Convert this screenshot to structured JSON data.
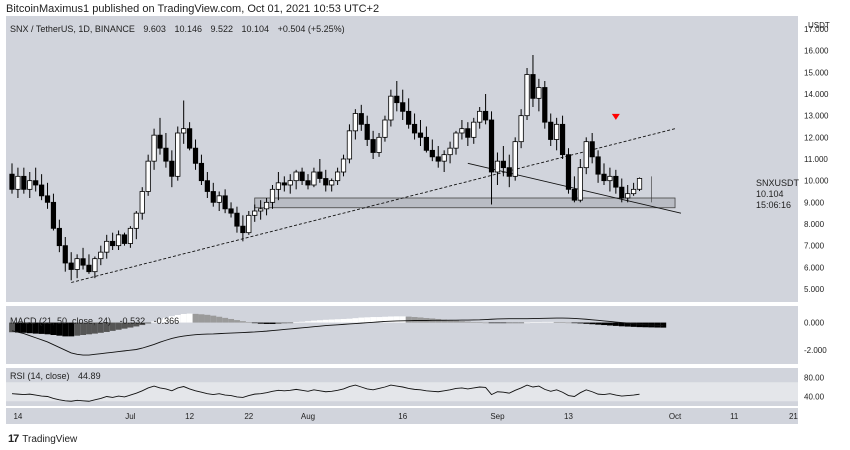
{
  "header": {
    "text": "BitcoinMaximus1 published on TradingView.com, Oct 01, 2021 10:53 UTC+2"
  },
  "footer": {
    "logo": "17",
    "text": "TradingView"
  },
  "legend": {
    "symbol": "SNX / TetherUS, 1D, BINANCE",
    "open": "9.603",
    "high": "10.146",
    "low": "9.522",
    "close": "10.104",
    "change": "+0.504 (+5.25%)"
  },
  "price_tag": {
    "symbol": "SNXUSDT",
    "price": "10.104",
    "countdown": "15:06:16"
  },
  "macd_legend": {
    "label": "MACD (21, 50, close, 24)",
    "v1": "-0.532",
    "v2": "-0.366"
  },
  "rsi_legend": {
    "label": "RSI (14, close)",
    "value": "44.89"
  },
  "colors": {
    "bg": "#d1d4dc",
    "up_fill": "#ffffff",
    "down_fill": "#000000",
    "marker": "#ff0000"
  },
  "chart_data": [
    {
      "type": "candlestick",
      "title": "SNX / TetherUS, 1D, BINANCE",
      "y_ticks": [
        "17.000",
        "16.000",
        "15.000",
        "14.000",
        "13.000",
        "12.000",
        "11.000",
        "10.000",
        "9.000",
        "8.000",
        "7.000",
        "6.000",
        "5.000"
      ],
      "y_top_label": "USDT",
      "x_ticks": [
        "14",
        "Jul",
        "12",
        "22",
        "Aug",
        "16",
        "Sep",
        "13",
        "Oct",
        "11",
        "21"
      ],
      "ylim": [
        4.4,
        17.6
      ],
      "candles": [
        [
          10.3,
          10.8,
          9.4,
          9.6
        ],
        [
          9.6,
          10.6,
          9.2,
          10.2
        ],
        [
          10.2,
          10.6,
          9.4,
          9.6
        ],
        [
          9.6,
          10.4,
          9.2,
          10.0
        ],
        [
          10.0,
          10.6,
          9.5,
          9.8
        ],
        [
          9.8,
          10.3,
          9.1,
          9.3
        ],
        [
          9.3,
          9.9,
          8.7,
          9.0
        ],
        [
          9.0,
          9.4,
          7.7,
          7.8
        ],
        [
          7.8,
          8.2,
          6.7,
          7.0
        ],
        [
          7.0,
          7.4,
          5.8,
          6.2
        ],
        [
          6.2,
          6.7,
          5.4,
          5.9
        ],
        [
          5.9,
          6.6,
          5.5,
          6.4
        ],
        [
          6.4,
          6.9,
          5.9,
          6.1
        ],
        [
          6.1,
          6.6,
          5.7,
          5.8
        ],
        [
          5.8,
          6.5,
          5.5,
          6.4
        ],
        [
          6.4,
          7.0,
          6.1,
          6.7
        ],
        [
          6.7,
          7.5,
          6.4,
          7.2
        ],
        [
          7.2,
          7.6,
          6.8,
          7.0
        ],
        [
          7.0,
          7.7,
          6.8,
          7.5
        ],
        [
          7.5,
          7.6,
          7.0,
          7.1
        ],
        [
          7.1,
          7.9,
          6.9,
          7.8
        ],
        [
          7.8,
          8.6,
          7.3,
          8.5
        ],
        [
          8.5,
          9.7,
          8.2,
          9.5
        ],
        [
          9.5,
          11.2,
          9.3,
          10.9
        ],
        [
          10.9,
          12.4,
          10.5,
          12.1
        ],
        [
          12.1,
          12.9,
          11.2,
          11.5
        ],
        [
          11.5,
          12.2,
          10.6,
          10.9
        ],
        [
          10.9,
          11.4,
          9.7,
          10.2
        ],
        [
          10.2,
          12.5,
          10.0,
          12.2
        ],
        [
          12.2,
          13.7,
          11.7,
          12.4
        ],
        [
          12.4,
          12.7,
          11.4,
          11.5
        ],
        [
          11.5,
          11.9,
          10.5,
          10.8
        ],
        [
          10.8,
          11.2,
          9.8,
          10.0
        ],
        [
          10.0,
          10.4,
          9.2,
          9.5
        ],
        [
          9.5,
          9.9,
          8.8,
          9.0
        ],
        [
          9.0,
          9.5,
          8.6,
          9.3
        ],
        [
          9.3,
          9.6,
          8.5,
          8.7
        ],
        [
          8.7,
          9.0,
          8.3,
          8.5
        ],
        [
          8.5,
          8.8,
          7.6,
          7.9
        ],
        [
          7.9,
          8.4,
          7.2,
          7.6
        ],
        [
          7.6,
          8.6,
          7.5,
          8.4
        ],
        [
          8.4,
          8.9,
          8.1,
          8.6
        ],
        [
          8.6,
          9.1,
          8.2,
          8.7
        ],
        [
          8.7,
          9.2,
          8.4,
          9.0
        ],
        [
          9.0,
          9.8,
          8.7,
          9.6
        ],
        [
          9.6,
          10.4,
          9.1,
          9.9
        ],
        [
          9.9,
          10.2,
          9.5,
          9.8
        ],
        [
          9.8,
          10.3,
          9.4,
          10.0
        ],
        [
          10.0,
          10.5,
          9.6,
          10.4
        ],
        [
          10.4,
          10.6,
          9.8,
          10.0
        ],
        [
          10.0,
          10.3,
          9.6,
          9.8
        ],
        [
          9.8,
          10.6,
          9.7,
          10.4
        ],
        [
          10.4,
          11.0,
          9.9,
          10.1
        ],
        [
          10.1,
          10.5,
          9.5,
          9.8
        ],
        [
          9.8,
          10.1,
          9.5,
          10.0
        ],
        [
          10.0,
          10.6,
          9.8,
          10.4
        ],
        [
          10.4,
          11.2,
          10.2,
          11.0
        ],
        [
          11.0,
          12.6,
          10.8,
          12.3
        ],
        [
          12.3,
          13.3,
          11.9,
          13.1
        ],
        [
          13.1,
          13.5,
          12.3,
          12.6
        ],
        [
          12.6,
          13.0,
          11.6,
          11.9
        ],
        [
          11.9,
          12.3,
          11.0,
          11.3
        ],
        [
          11.3,
          12.2,
          11.1,
          12.0
        ],
        [
          12.0,
          13.0,
          11.8,
          12.8
        ],
        [
          12.8,
          14.2,
          12.5,
          13.9
        ],
        [
          13.9,
          14.6,
          13.2,
          13.6
        ],
        [
          13.6,
          14.2,
          12.8,
          13.2
        ],
        [
          13.2,
          13.8,
          12.4,
          12.6
        ],
        [
          12.6,
          13.1,
          11.9,
          12.2
        ],
        [
          12.2,
          12.8,
          11.6,
          12.0
        ],
        [
          12.0,
          12.5,
          11.3,
          11.4
        ],
        [
          11.4,
          11.9,
          10.9,
          11.1
        ],
        [
          11.1,
          11.6,
          10.6,
          10.9
        ],
        [
          10.9,
          11.4,
          10.4,
          11.2
        ],
        [
          11.2,
          11.8,
          10.8,
          11.5
        ],
        [
          11.5,
          12.3,
          11.2,
          12.2
        ],
        [
          12.2,
          12.8,
          11.9,
          12.4
        ],
        [
          12.4,
          12.7,
          11.6,
          12.0
        ],
        [
          12.0,
          12.9,
          11.7,
          12.7
        ],
        [
          12.7,
          13.4,
          12.4,
          13.2
        ],
        [
          13.2,
          14.0,
          12.6,
          12.8
        ],
        [
          12.8,
          13.2,
          8.9,
          10.4
        ],
        [
          10.4,
          11.3,
          9.8,
          10.9
        ],
        [
          10.9,
          11.6,
          10.2,
          10.6
        ],
        [
          10.6,
          11.2,
          9.7,
          10.2
        ],
        [
          10.2,
          12.0,
          10.0,
          11.8
        ],
        [
          11.8,
          13.3,
          11.5,
          13.0
        ],
        [
          13.0,
          15.2,
          12.8,
          14.9
        ],
        [
          14.9,
          15.8,
          13.4,
          13.8
        ],
        [
          13.8,
          14.7,
          13.2,
          14.3
        ],
        [
          14.3,
          14.6,
          12.4,
          12.7
        ],
        [
          12.7,
          13.1,
          11.6,
          11.9
        ],
        [
          11.9,
          12.9,
          11.4,
          12.6
        ],
        [
          12.6,
          13.0,
          11.0,
          11.2
        ],
        [
          11.2,
          11.5,
          9.4,
          9.6
        ],
        [
          9.6,
          10.2,
          9.0,
          9.1
        ],
        [
          9.1,
          11.0,
          9.0,
          10.6
        ],
        [
          10.6,
          12.0,
          10.3,
          11.8
        ],
        [
          11.8,
          12.2,
          10.8,
          11.1
        ],
        [
          11.1,
          11.4,
          9.9,
          10.3
        ],
        [
          10.3,
          10.8,
          9.8,
          10.0
        ],
        [
          10.0,
          10.6,
          9.5,
          10.2
        ],
        [
          10.2,
          10.5,
          9.4,
          9.7
        ],
        [
          9.7,
          10.1,
          9.0,
          9.2
        ],
        [
          9.2,
          9.8,
          9.0,
          9.4
        ],
        [
          9.4,
          9.9,
          9.3,
          9.6
        ],
        [
          9.603,
          10.146,
          9.522,
          10.104
        ]
      ],
      "support_zone": [
        8.75,
        9.2
      ],
      "dashed_trendline": {
        "from": {
          "index": 10,
          "price": 5.3
        },
        "to": {
          "index": 112,
          "price": 12.4
        }
      },
      "solid_trendline": {
        "from": {
          "index": 77,
          "price": 10.8
        },
        "to": {
          "index": 113,
          "price": 8.5
        }
      },
      "marker": {
        "index": 102,
        "price": 12.9
      },
      "vertical_line_index": 108
    },
    {
      "type": "histogram+line",
      "title": "MACD (21, 50, close, 24)",
      "y_ticks": [
        "0.000",
        "-2.000"
      ],
      "ylim": [
        -3.0,
        1.2
      ],
      "histogram": [
        -0.7,
        -0.72,
        -0.74,
        -0.77,
        -0.8,
        -0.82,
        -0.85,
        -0.9,
        -0.95,
        -1.0,
        -1.0,
        -0.95,
        -0.9,
        -0.85,
        -0.8,
        -0.74,
        -0.68,
        -0.6,
        -0.52,
        -0.44,
        -0.36,
        -0.28,
        -0.18,
        -0.06,
        0.08,
        0.22,
        0.35,
        0.46,
        0.55,
        0.62,
        0.65,
        0.63,
        0.6,
        0.56,
        0.5,
        0.42,
        0.34,
        0.26,
        0.18,
        0.1,
        0.04,
        -0.04,
        -0.08,
        -0.1,
        -0.1,
        -0.08,
        -0.05,
        -0.02,
        0.02,
        0.06,
        0.1,
        0.14,
        0.17,
        0.2,
        0.22,
        0.24,
        0.26,
        0.28,
        0.32,
        0.36,
        0.38,
        0.4,
        0.4,
        0.42,
        0.44,
        0.45,
        0.45,
        0.43,
        0.4,
        0.37,
        0.33,
        0.3,
        0.26,
        0.22,
        0.18,
        0.14,
        0.1,
        0.07,
        0.04,
        0.02,
        0.0,
        -0.02,
        -0.04,
        -0.04,
        -0.03,
        -0.02,
        -0.01,
        0.0,
        0.02,
        0.04,
        0.05,
        0.05,
        0.04,
        0.02,
        0.0,
        -0.03,
        -0.06,
        -0.09,
        -0.12,
        -0.15,
        -0.18,
        -0.21,
        -0.24,
        -0.27,
        -0.29,
        -0.31,
        -0.33,
        -0.34,
        -0.35,
        -0.36,
        -0.366
      ],
      "macd_line": [
        -0.6,
        -0.7,
        -0.8,
        -0.95,
        -1.1,
        -1.25,
        -1.4,
        -1.6,
        -1.8,
        -2.0,
        -2.2,
        -2.3,
        -2.35,
        -2.35,
        -2.3,
        -2.25,
        -2.2,
        -2.15,
        -2.1,
        -2.05,
        -2.0,
        -1.95,
        -1.85,
        -1.72,
        -1.58,
        -1.42,
        -1.28,
        -1.15,
        -1.05,
        -0.98,
        -0.92,
        -0.88,
        -0.85,
        -0.83,
        -0.82,
        -0.8,
        -0.78,
        -0.76,
        -0.74,
        -0.72,
        -0.7,
        -0.68,
        -0.65,
        -0.62,
        -0.58,
        -0.54,
        -0.5,
        -0.46,
        -0.42,
        -0.38,
        -0.34,
        -0.3,
        -0.26,
        -0.22,
        -0.19,
        -0.16,
        -0.13,
        -0.1,
        -0.07,
        -0.04,
        -0.01,
        0.02,
        0.05,
        0.08,
        0.1,
        0.12,
        0.13,
        0.14,
        0.15,
        0.15,
        0.15,
        0.16,
        0.16,
        0.16,
        0.17,
        0.17,
        0.18,
        0.18,
        0.19,
        0.2,
        0.22,
        0.24,
        0.26,
        0.27,
        0.28,
        0.28,
        0.28,
        0.28,
        0.29,
        0.3,
        0.31,
        0.32,
        0.33,
        0.33,
        0.32,
        0.3,
        0.27,
        0.24,
        0.2,
        0.16,
        0.12,
        0.08,
        0.04,
        0.0,
        -0.04,
        -0.08,
        -0.12,
        -0.16,
        -0.18,
        -0.2,
        -0.22
      ]
    },
    {
      "type": "line",
      "title": "RSI (14, close)",
      "y_ticks": [
        "80.00",
        "40.00"
      ],
      "ylim": [
        20,
        100
      ],
      "band": [
        30,
        70
      ],
      "values": [
        46,
        45,
        44,
        45,
        43,
        41,
        40,
        36,
        33,
        31,
        30,
        32,
        31,
        30,
        33,
        36,
        40,
        38,
        41,
        39,
        43,
        47,
        52,
        58,
        62,
        58,
        56,
        52,
        58,
        61,
        56,
        52,
        49,
        46,
        44,
        46,
        43,
        42,
        39,
        38,
        42,
        45,
        46,
        48,
        51,
        53,
        52,
        53,
        55,
        53,
        51,
        54,
        52,
        50,
        51,
        53,
        56,
        61,
        64,
        60,
        56,
        54,
        57,
        60,
        64,
        62,
        60,
        57,
        55,
        54,
        52,
        51,
        50,
        52,
        54,
        57,
        58,
        56,
        58,
        60,
        59,
        44,
        50,
        49,
        47,
        53,
        58,
        64,
        60,
        62,
        55,
        51,
        54,
        49,
        42,
        40,
        48,
        54,
        50,
        45,
        44,
        46,
        43,
        41,
        42,
        43,
        44.89
      ]
    }
  ]
}
